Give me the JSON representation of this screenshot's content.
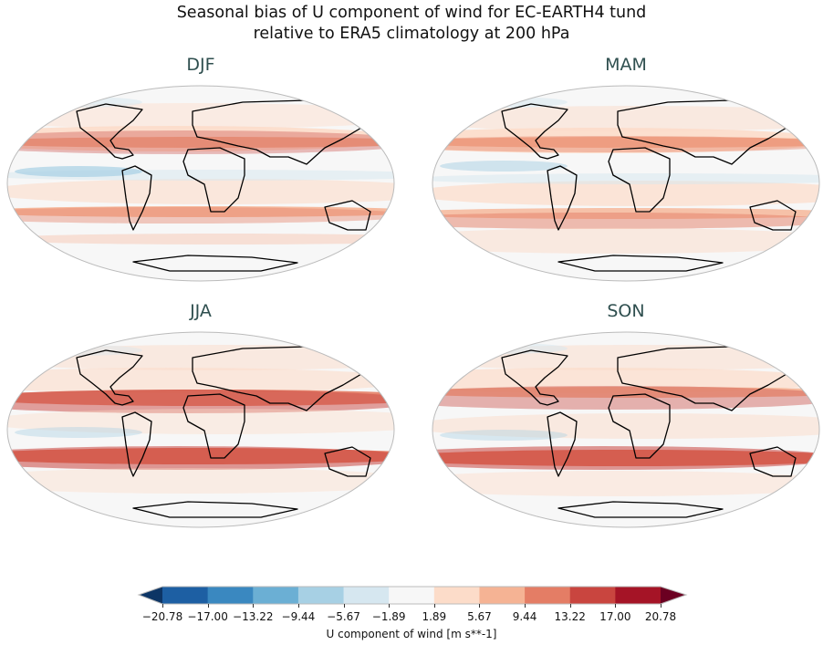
{
  "title_line1": "Seasonal bias of U component of wind for EC-EARTH4 tund",
  "title_line2": "relative to ERA5 climatology at 200 hPa",
  "panels": [
    {
      "label": "DJF"
    },
    {
      "label": "MAM"
    },
    {
      "label": "JJA"
    },
    {
      "label": "SON"
    }
  ],
  "colorbar": {
    "label": "U component of wind [m s**-1]",
    "ticks": [
      "−20.78",
      "−17.00",
      "−13.22",
      "−9.44",
      "−5.67",
      "−1.89",
      "1.89",
      "5.67",
      "9.44",
      "13.22",
      "17.00",
      "20.78"
    ],
    "colors": [
      "#1d5fa3",
      "#3a88c0",
      "#6bafd4",
      "#a7d0e4",
      "#d6e7f0",
      "#f7f7f7",
      "#fcdcc9",
      "#f5b394",
      "#e47d65",
      "#c9453f",
      "#a51426"
    ],
    "under_color": "#0d3565",
    "over_color": "#6b0021",
    "extend": "both"
  }
}
